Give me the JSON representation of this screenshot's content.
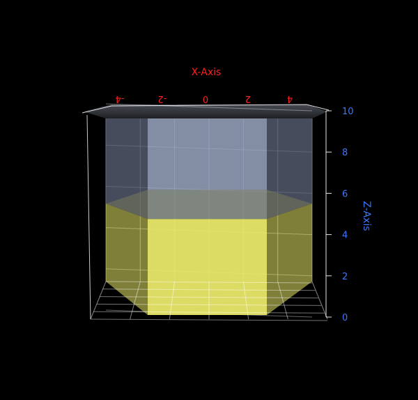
{
  "chart_data": {
    "type": "3d-hexagonal-prism",
    "xlabel": "X-Axis",
    "zlabel": "Z-Axis",
    "x_ticks": [
      "-4",
      "-2",
      "0",
      "2",
      "4"
    ],
    "z_ticks": [
      "0",
      "2",
      "4",
      "6",
      "8",
      "10"
    ],
    "zlim": [
      0,
      10
    ],
    "xlim": [
      -5,
      5
    ],
    "fill_level": 5.5,
    "grid": true,
    "colors": {
      "background": "#000000",
      "x_axis": "#ff2020",
      "z_axis": "#3a78ff",
      "liquid": "#e8e86a",
      "empty": "#9aa7c2",
      "grid": "#ffffff"
    }
  }
}
